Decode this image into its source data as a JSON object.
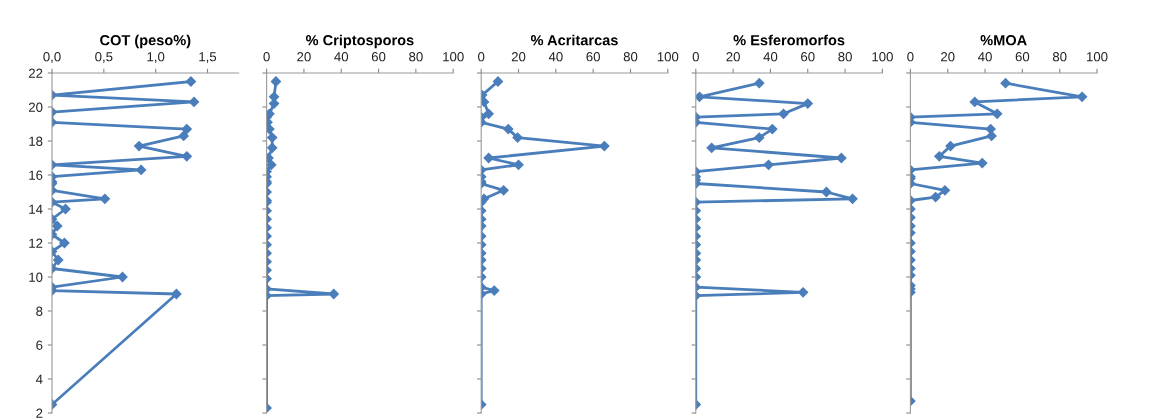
{
  "chart_data": [
    {
      "type": "line",
      "title": "COT (peso%)",
      "marker": "diamond",
      "xlim": [
        0,
        1.8
      ],
      "xticks": [
        {
          "value": 0,
          "label": "0,0"
        },
        {
          "value": 0.5,
          "label": "0,5"
        },
        {
          "value": 1,
          "label": "1,0"
        },
        {
          "value": 1.5,
          "label": "1,5"
        }
      ],
      "ylim": [
        2,
        22
      ],
      "yticks": [
        2,
        4,
        6,
        8,
        10,
        12,
        14,
        16,
        18,
        20,
        22
      ],
      "series": [
        {
          "color": "#4a7ebb",
          "x": [
            1.34,
            0,
            1.37,
            0,
            0,
            1.3,
            1.27,
            0.84,
            1.3,
            0,
            0.86,
            0,
            0,
            0,
            0,
            0.51,
            0,
            0.13,
            0,
            0.05,
            0,
            0.12,
            0,
            0.06,
            0,
            0.68,
            0,
            0,
            1.2,
            0
          ],
          "values": [
            21.5,
            20.7,
            20.3,
            19.7,
            19.1,
            18.7,
            18.3,
            17.7,
            17.1,
            16.6,
            16.3,
            15.9,
            15.6,
            15.5,
            15.1,
            14.6,
            14.4,
            14.0,
            13.4,
            13.0,
            12.5,
            12.0,
            11.5,
            11.0,
            10.5,
            10.0,
            9.4,
            9.2,
            9.0,
            2.5
          ]
        }
      ]
    },
    {
      "type": "line",
      "title": "% Criptosporos",
      "marker": "diamond",
      "tick_labels": "x",
      "xlim": [
        0,
        100
      ],
      "xticks": [
        0,
        20,
        40,
        60,
        80,
        100
      ],
      "ylim": [
        2,
        22
      ],
      "yticks": [
        2,
        4,
        6,
        8,
        10,
        12,
        14,
        16,
        18,
        20,
        22
      ],
      "series": [
        {
          "color": "#4a7ebb",
          "x": [
            5,
            4,
            4,
            1.5,
            0,
            0.5,
            1.5,
            3,
            3,
            1,
            2.5,
            0,
            0,
            0,
            0,
            0,
            0,
            0,
            0,
            0,
            0,
            0,
            0,
            0,
            0,
            0,
            0,
            0,
            36,
            0,
            0
          ],
          "values": [
            21.5,
            20.6,
            20.2,
            19.6,
            19.4,
            19.1,
            18.7,
            18.2,
            17.6,
            17.0,
            16.6,
            16.2,
            15.9,
            15.6,
            15.5,
            15.0,
            14.5,
            14.4,
            13.9,
            13.4,
            12.9,
            12.4,
            11.9,
            11.4,
            10.9,
            10.4,
            9.9,
            9.3,
            9.0,
            8.9,
            2.3
          ]
        }
      ]
    },
    {
      "type": "line",
      "title": "% Acritarcas",
      "marker": "diamond",
      "tick_labels": "x",
      "xlim": [
        0,
        100
      ],
      "xticks": [
        0,
        20,
        40,
        60,
        80,
        100
      ],
      "ylim": [
        2,
        22
      ],
      "yticks": [
        2,
        4,
        6,
        8,
        10,
        12,
        14,
        16,
        18,
        20,
        22
      ],
      "series": [
        {
          "color": "#4a7ebb",
          "x": [
            9,
            0.5,
            1.5,
            4,
            0,
            0,
            14.5,
            19.5,
            66,
            4,
            20,
            0,
            0,
            0,
            0,
            12,
            1.5,
            0,
            0,
            0,
            0,
            0,
            0,
            0,
            0,
            0,
            0,
            0,
            7,
            0,
            0
          ],
          "values": [
            21.5,
            20.7,
            20.3,
            19.6,
            19.4,
            19.1,
            18.7,
            18.2,
            17.7,
            17.0,
            16.6,
            16.3,
            15.9,
            15.6,
            15.5,
            15.1,
            14.6,
            14.4,
            13.9,
            13.4,
            13.0,
            12.4,
            11.9,
            11.4,
            11.0,
            10.5,
            10.0,
            9.4,
            9.2,
            9.0,
            2.5
          ]
        }
      ]
    },
    {
      "type": "line",
      "title": "% Esferomorfos",
      "marker": "diamond",
      "tick_labels": "x",
      "xlim": [
        0,
        100
      ],
      "xticks": [
        0,
        20,
        40,
        60,
        80,
        100
      ],
      "ylim": [
        2,
        22
      ],
      "yticks": [
        2,
        4,
        6,
        8,
        10,
        12,
        14,
        16,
        18,
        20,
        22
      ],
      "series": [
        {
          "color": "#4a7ebb",
          "x": [
            34,
            2,
            60,
            47,
            0,
            0,
            41,
            34,
            8.5,
            78,
            39,
            0,
            0,
            0,
            0,
            70,
            84,
            0,
            0,
            0,
            0,
            0,
            0,
            0,
            0,
            0,
            0,
            0,
            57.5,
            0,
            0
          ],
          "values": [
            21.4,
            20.6,
            20.2,
            19.6,
            19.4,
            19.1,
            18.7,
            18.2,
            17.6,
            17.0,
            16.6,
            16.2,
            15.9,
            15.7,
            15.5,
            15.0,
            14.6,
            14.4,
            13.9,
            13.4,
            12.9,
            12.4,
            11.9,
            11.4,
            11.0,
            10.5,
            10.0,
            9.4,
            9.1,
            8.9,
            2.5
          ]
        }
      ]
    },
    {
      "type": "line",
      "title": "%MOA",
      "marker": "diamond",
      "tick_labels": "x",
      "xlim": [
        0,
        100
      ],
      "xticks": [
        0,
        20,
        40,
        60,
        80,
        100
      ],
      "ylim": [
        2,
        22
      ],
      "yticks": [
        2,
        4,
        6,
        8,
        10,
        12,
        14,
        16,
        18,
        20,
        22
      ],
      "series": [
        {
          "color": "#4a7ebb",
          "x": [
            51,
            92,
            34.5,
            46.5,
            0,
            0,
            43,
            43.5,
            21.5,
            15.5,
            38.5,
            0,
            0,
            0,
            0,
            18.5,
            13.5,
            0,
            0,
            0,
            0,
            0,
            0,
            0,
            0,
            0,
            0,
            0,
            0,
            0,
            0
          ],
          "values": [
            21.4,
            20.6,
            20.3,
            19.6,
            19.4,
            19.1,
            18.7,
            18.3,
            17.7,
            17.1,
            16.7,
            16.3,
            15.9,
            15.8,
            15.5,
            15.1,
            14.7,
            14.5,
            14.0,
            13.5,
            13.0,
            12.6,
            12.0,
            11.5,
            11.0,
            10.5,
            10.1,
            9.5,
            9.3,
            9.1,
            2.7
          ]
        }
      ]
    }
  ]
}
